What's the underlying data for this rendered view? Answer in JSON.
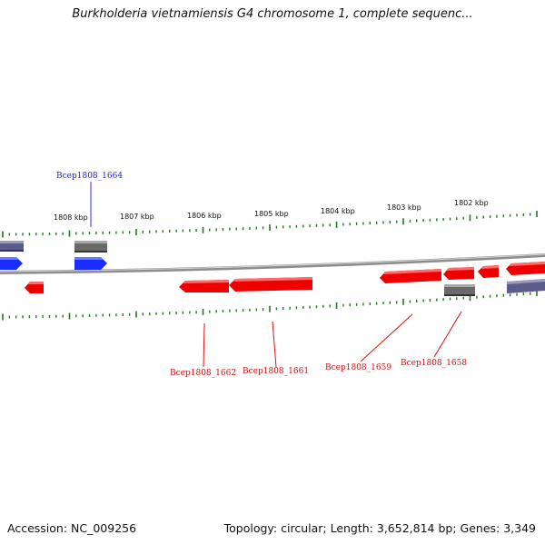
{
  "title": "Burkholderia vietnamiensis G4 chromosome 1, complete sequenc...",
  "accession_text": "Accession: NC_009256",
  "summary_text": "Topology: circular; Length: 3,652,814 bp; Genes: 3,349",
  "colors": {
    "forward_gene": "#1a2dff",
    "reverse_gene": "#ee0000",
    "forward_label": "#2222cc",
    "reverse_label": "#cc1111",
    "other_feature": "#5c5c8a",
    "pseudo_feature": "#666666",
    "tick": "#1f7a1f",
    "backbone": "#8a8a8a"
  },
  "scale_labels": [
    "1808 kbp",
    "1807 kbp",
    "1806 kbp",
    "1805 kbp",
    "1804 kbp",
    "1803 kbp",
    "1802 kbp"
  ],
  "gene_labels": {
    "forward": [
      "Bcep1808_1664"
    ],
    "reverse": [
      "Bcep1808_1662",
      "Bcep1808_1661",
      "Bcep1808_1659",
      "Bcep1808_1658"
    ]
  }
}
